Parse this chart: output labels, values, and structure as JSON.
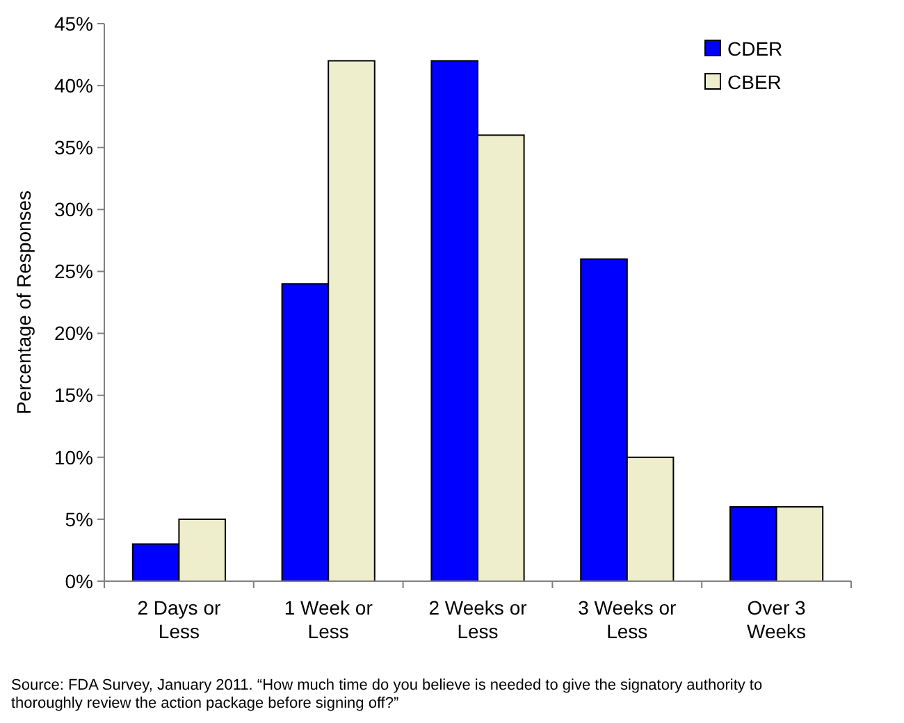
{
  "chart_data": {
    "type": "bar",
    "ylabel": "Percentage of Responses",
    "categories": [
      "2 Days or Less",
      "1 Week or Less",
      "2 Weeks or Less",
      "3 Weeks or Less",
      "Over 3 Weeks"
    ],
    "series": [
      {
        "name": "CDER",
        "color": "#0000ff",
        "values": [
          3,
          24,
          42,
          26,
          6
        ]
      },
      {
        "name": "CBER",
        "color": "#eeeecc",
        "values": [
          5,
          42,
          36,
          10,
          6
        ]
      }
    ],
    "ylim": [
      0,
      45
    ],
    "yticks": [
      {
        "value": 0,
        "label": "0%"
      },
      {
        "value": 5,
        "label": "5%"
      },
      {
        "value": 10,
        "label": "10%"
      },
      {
        "value": 15,
        "label": "15%"
      },
      {
        "value": 20,
        "label": "20%"
      },
      {
        "value": 25,
        "label": "25%"
      },
      {
        "value": 30,
        "label": "30%"
      },
      {
        "value": 35,
        "label": "35%"
      },
      {
        "value": 40,
        "label": "40%"
      },
      {
        "value": 45,
        "label": "45%"
      }
    ],
    "grid": false,
    "legend": "top right",
    "annotations": [
      "Source: FDA Survey, January 2011. “How much time do you believe is needed to give the signatory authority to thoroughly review the action package before signing off?”"
    ]
  }
}
